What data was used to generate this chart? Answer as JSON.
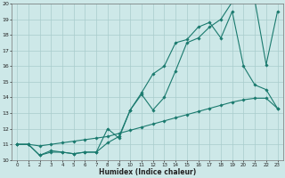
{
  "xlabel": "Humidex (Indice chaleur)",
  "xlim": [
    -0.5,
    23.5
  ],
  "ylim": [
    10,
    20
  ],
  "yticks": [
    10,
    11,
    12,
    13,
    14,
    15,
    16,
    17,
    18,
    19,
    20
  ],
  "xticks": [
    0,
    1,
    2,
    3,
    4,
    5,
    6,
    7,
    8,
    9,
    10,
    11,
    12,
    13,
    14,
    15,
    16,
    17,
    18,
    19,
    20,
    21,
    22,
    23
  ],
  "background_color": "#cde8e8",
  "grid_color": "#a8cccc",
  "line_color": "#1a7a6e",
  "curve1_x": [
    0,
    1,
    2,
    3,
    4,
    5,
    6,
    7,
    8,
    9,
    10,
    11,
    12,
    13,
    14,
    15,
    16,
    17,
    18,
    19,
    20,
    21,
    22,
    23
  ],
  "curve1_y": [
    11.0,
    11.0,
    10.3,
    10.6,
    10.5,
    10.4,
    10.5,
    10.5,
    11.1,
    11.5,
    13.2,
    14.2,
    13.2,
    14.0,
    15.7,
    17.5,
    17.8,
    18.5,
    19.0,
    20.1,
    20.2,
    20.2,
    16.1,
    19.5
  ],
  "curve2_x": [
    0,
    1,
    2,
    3,
    4,
    5,
    6,
    7,
    8,
    9,
    10,
    11,
    12,
    13,
    14,
    15,
    16,
    17,
    18,
    19,
    20,
    21,
    22,
    23
  ],
  "curve2_y": [
    11.0,
    11.0,
    10.3,
    10.5,
    10.5,
    10.4,
    10.5,
    10.5,
    12.0,
    11.4,
    13.2,
    14.3,
    15.5,
    16.0,
    17.5,
    17.7,
    18.5,
    18.8,
    17.8,
    19.5,
    16.0,
    14.8,
    14.5,
    13.3
  ],
  "curve3_x": [
    0,
    1,
    2,
    3,
    4,
    5,
    6,
    7,
    8,
    9,
    10,
    11,
    12,
    13,
    14,
    15,
    16,
    17,
    18,
    19,
    20,
    21,
    22,
    23
  ],
  "curve3_y": [
    11.0,
    11.0,
    10.9,
    11.0,
    11.1,
    11.2,
    11.3,
    11.4,
    11.5,
    11.7,
    11.9,
    12.1,
    12.3,
    12.5,
    12.7,
    12.9,
    13.1,
    13.3,
    13.5,
    13.7,
    13.85,
    13.95,
    13.95,
    13.3
  ]
}
